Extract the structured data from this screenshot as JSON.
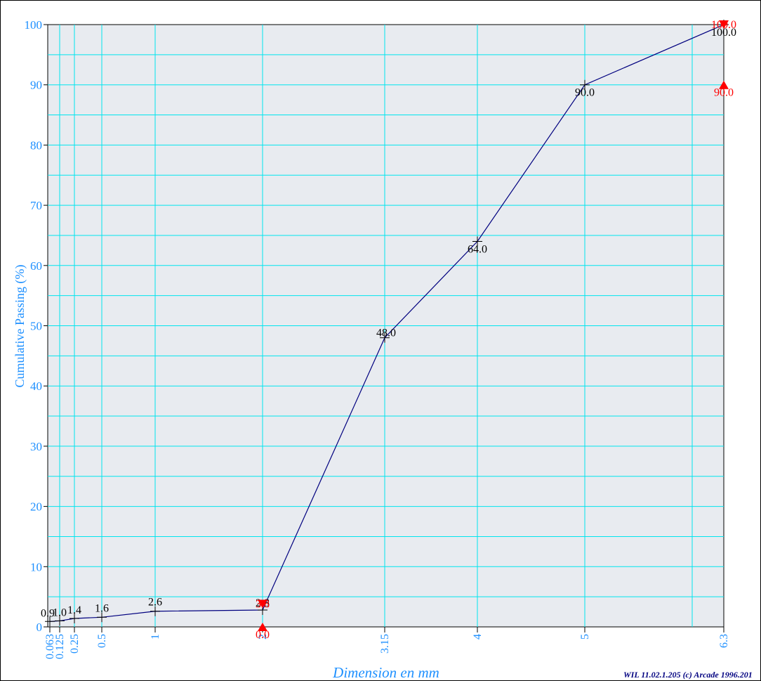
{
  "chart_data": {
    "type": "line",
    "xlabel": "Dimension en mm",
    "ylabel": "Cumulative Passing (%)",
    "ylim": [
      0,
      100
    ],
    "y_ticks": [
      0,
      10,
      20,
      30,
      40,
      50,
      60,
      70,
      80,
      90,
      100
    ],
    "x_tick_labels": [
      "0.063",
      "0.125",
      "0.25",
      "0.5",
      "1",
      "2",
      "3.15",
      "4",
      "5",
      "6.3"
    ],
    "grid": true,
    "series": [
      {
        "x": [
          "0.063",
          "0.125",
          "0.25",
          "0.5",
          "1",
          "2",
          "3.15",
          "4",
          "5",
          "6.3"
        ],
        "values": [
          0.9,
          1.0,
          1.4,
          1.6,
          2.6,
          2.8,
          48.0,
          64.0,
          90.0,
          100.0
        ],
        "labels": [
          "0.9",
          "1.0",
          "1.4",
          "1.6",
          "2.6",
          "2.8",
          "48.0",
          "64.0",
          "90.0",
          "100.0"
        ],
        "color": "#00007f"
      }
    ],
    "spec_limits": [
      {
        "x": "2",
        "upper": 3.8,
        "lower": 0.0,
        "upper_label": "3.8",
        "lower_label": "0.0"
      },
      {
        "x": "6.3",
        "upper": 100.0,
        "lower": 90.0,
        "upper_label": "100.0",
        "lower_label": "90.0"
      }
    ],
    "footer": "WIL 11.02.1.205 (c) Arcade 1996.201",
    "colors": {
      "plot_bg": "#e8ebf0",
      "grid": "#00e5ee",
      "axis_text": "#1e90ff",
      "line": "#00007f",
      "limits": "#ff0000"
    }
  }
}
